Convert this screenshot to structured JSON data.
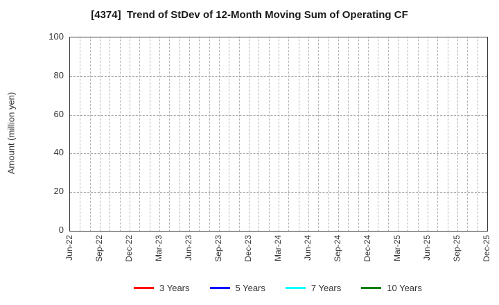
{
  "chart_data": {
    "type": "line",
    "title": "[4374]  Trend of StDev of 12-Month Moving Sum of Operating CF",
    "xlabel": "",
    "ylabel": "Amount (million yen)",
    "ylim": [
      0,
      100
    ],
    "yticks": [
      0,
      20,
      40,
      60,
      80,
      100
    ],
    "x_tick_labels": [
      "Jun-22",
      "Sep-22",
      "Dec-22",
      "Mar-23",
      "Jun-23",
      "Sep-23",
      "Dec-23",
      "Mar-24",
      "Jun-24",
      "Sep-24",
      "Dec-24",
      "Mar-25",
      "Jun-25",
      "Sep-25",
      "Dec-25"
    ],
    "x_minor_divisions": 42,
    "grid": true,
    "grid_style": {
      "vertical": "dotted-monthly",
      "horizontal": "dashed-major",
      "color": "#a6a6a6"
    },
    "frame_color": "#3c3c3c",
    "legend_position": "bottom-center",
    "series": [
      {
        "name": "3 Years",
        "color": "#ff0000",
        "values": []
      },
      {
        "name": "5 Years",
        "color": "#0000ff",
        "values": []
      },
      {
        "name": "7 Years",
        "color": "#00ffff",
        "values": []
      },
      {
        "name": "10 Years",
        "color": "#008000",
        "values": []
      }
    ]
  }
}
